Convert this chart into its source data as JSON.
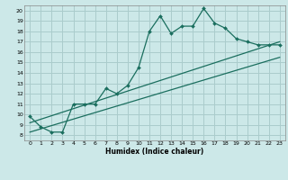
{
  "title": "",
  "xlabel": "Humidex (Indice chaleur)",
  "bg_color": "#cce8e8",
  "grid_color": "#aacccc",
  "line_color": "#1a6e5e",
  "xlim": [
    -0.5,
    23.5
  ],
  "ylim": [
    7.5,
    20.5
  ],
  "yticks": [
    8,
    9,
    10,
    11,
    12,
    13,
    14,
    15,
    16,
    17,
    18,
    19,
    20
  ],
  "xticks": [
    0,
    1,
    2,
    3,
    4,
    5,
    6,
    7,
    8,
    9,
    10,
    11,
    12,
    13,
    14,
    15,
    16,
    17,
    18,
    19,
    20,
    21,
    22,
    23
  ],
  "line1_x": [
    0,
    1,
    2,
    3,
    4,
    5,
    6,
    7,
    8,
    9,
    10,
    11,
    12,
    13,
    14,
    15,
    16,
    17,
    18,
    19,
    20,
    21,
    22,
    23
  ],
  "line1_y": [
    9.8,
    8.8,
    8.3,
    8.3,
    11.0,
    11.0,
    11.0,
    12.5,
    12.0,
    12.8,
    14.5,
    18.0,
    19.5,
    17.8,
    18.5,
    18.5,
    20.2,
    18.8,
    18.3,
    17.3,
    17.0,
    16.7,
    16.7,
    16.7
  ],
  "line2_x": [
    0,
    23
  ],
  "line2_y": [
    9.2,
    17.0
  ],
  "line3_x": [
    0,
    23
  ],
  "line3_y": [
    8.3,
    15.5
  ]
}
